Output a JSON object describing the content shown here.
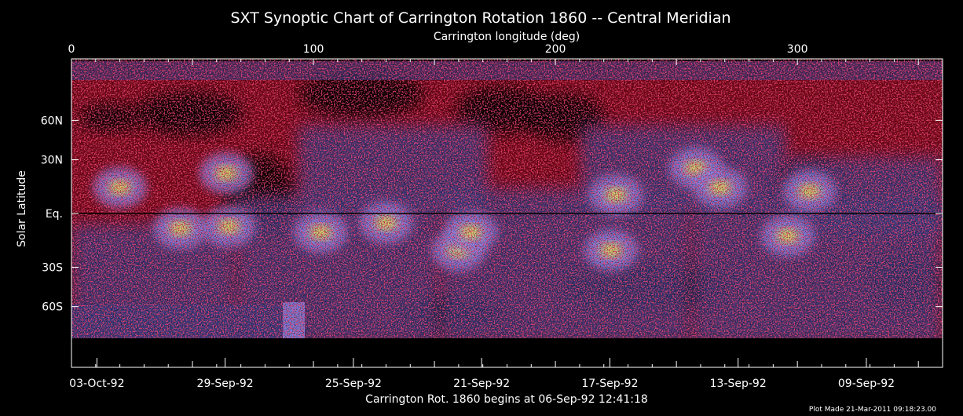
{
  "chart_data": {
    "type": "heatmap",
    "title": "SXT Synoptic Chart of Carrington Rotation 1860 -- Central Meridian",
    "top_axis": {
      "label": "Carrington longitude (deg)",
      "range": [
        0,
        360
      ],
      "ticks": [
        {
          "value": 0,
          "label": "0"
        },
        {
          "value": 100,
          "label": "100"
        },
        {
          "value": 200,
          "label": "200"
        },
        {
          "value": 300,
          "label": "300"
        }
      ]
    },
    "y_axis": {
      "label": "Solar Latitude",
      "ticks": [
        {
          "value": 60,
          "label": "60N"
        },
        {
          "value": 30,
          "label": "30N"
        },
        {
          "value": 0,
          "label": "Eq."
        },
        {
          "value": -30,
          "label": "30S"
        },
        {
          "value": -60,
          "label": "60S"
        }
      ]
    },
    "bottom_axis": {
      "label": "Carrington Rot. 1860 begins at 06-Sep-92 12:41:18",
      "ticks": [
        {
          "value": 10.5,
          "label": "03-Oct-92"
        },
        {
          "value": 63.5,
          "label": "29-Sep-92"
        },
        {
          "value": 116.5,
          "label": "25-Sep-92"
        },
        {
          "value": 169.5,
          "label": "21-Sep-92"
        },
        {
          "value": 222.5,
          "label": "17-Sep-92"
        },
        {
          "value": 275.5,
          "label": "13-Sep-92"
        },
        {
          "value": 328.5,
          "label": "09-Sep-92"
        }
      ]
    },
    "equator_line": true,
    "colors": {
      "background": "#000000",
      "axes": "#ffffff",
      "equator": "#000000",
      "low_intensity": "#e0102e",
      "medium_intensity": "#3a3f86",
      "high_intensity": "#8c8cf0",
      "peak_intensity": "#f2f046"
    },
    "bright_regions": [
      {
        "lon": 20,
        "lat": 14
      },
      {
        "lon": 45,
        "lat": -8
      },
      {
        "lon": 65,
        "lat": -7
      },
      {
        "lon": 64,
        "lat": 22
      },
      {
        "lon": 103,
        "lat": -10
      },
      {
        "lon": 130,
        "lat": -5
      },
      {
        "lon": 160,
        "lat": -20
      },
      {
        "lon": 165,
        "lat": -10
      },
      {
        "lon": 223,
        "lat": -20
      },
      {
        "lon": 225,
        "lat": 10
      },
      {
        "lon": 258,
        "lat": 25
      },
      {
        "lon": 268,
        "lat": 14
      },
      {
        "lon": 296,
        "lat": -12
      },
      {
        "lon": 305,
        "lat": 12
      }
    ]
  },
  "footer": {
    "plot_made": "Plot Made 21-Mar-2011 09:18:23.00"
  }
}
